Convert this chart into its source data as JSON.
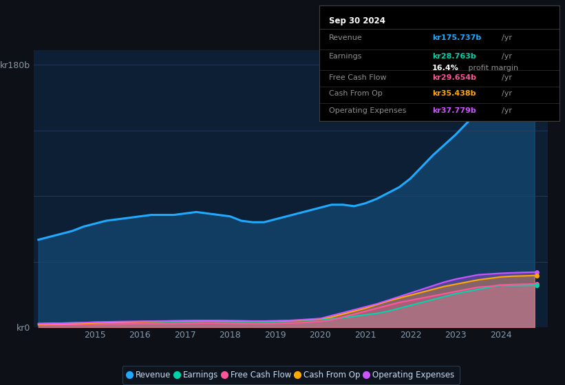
{
  "bg_color": "#0d1117",
  "plot_bg_color": "#0d1f35",
  "grid_color": "#1e3050",
  "years": [
    2013.75,
    2014.0,
    2014.25,
    2014.5,
    2014.75,
    2015.0,
    2015.25,
    2015.5,
    2015.75,
    2016.0,
    2016.25,
    2016.5,
    2016.75,
    2017.0,
    2017.25,
    2017.5,
    2017.75,
    2018.0,
    2018.25,
    2018.5,
    2018.75,
    2019.0,
    2019.25,
    2019.5,
    2019.75,
    2020.0,
    2020.25,
    2020.5,
    2020.75,
    2021.0,
    2021.25,
    2021.5,
    2021.75,
    2022.0,
    2022.25,
    2022.5,
    2022.75,
    2023.0,
    2023.25,
    2023.5,
    2023.75,
    2024.0,
    2024.25,
    2024.5,
    2024.75
  ],
  "revenue": [
    60,
    62,
    64,
    66,
    69,
    71,
    73,
    74,
    75,
    76,
    77,
    77,
    77,
    78,
    79,
    78,
    77,
    76,
    73,
    72,
    72,
    74,
    76,
    78,
    80,
    82,
    84,
    84,
    83,
    85,
    88,
    92,
    96,
    102,
    110,
    118,
    125,
    132,
    140,
    148,
    158,
    165,
    170,
    174,
    175.737
  ],
  "earnings": [
    2.5,
    2.7,
    2.8,
    3.0,
    3.2,
    3.4,
    3.5,
    3.6,
    3.7,
    3.8,
    3.9,
    4.0,
    4.0,
    4.1,
    4.2,
    4.3,
    4.2,
    4.1,
    4.0,
    3.9,
    3.8,
    4.0,
    4.2,
    4.5,
    5.0,
    5.5,
    5.8,
    6.5,
    7.5,
    8.5,
    9.5,
    11.0,
    13.0,
    15.0,
    17.0,
    19.0,
    21.0,
    23.0,
    24.5,
    26.0,
    27.5,
    28.763,
    28.5,
    28.6,
    28.763
  ],
  "free_cash_flow": [
    1.5,
    1.6,
    1.7,
    1.8,
    1.9,
    2.0,
    2.1,
    2.2,
    2.3,
    2.4,
    2.5,
    2.6,
    2.6,
    2.7,
    2.8,
    2.9,
    2.8,
    2.7,
    2.6,
    2.5,
    2.5,
    2.6,
    2.8,
    3.0,
    3.5,
    4.0,
    5.0,
    7.0,
    9.0,
    11.0,
    13.0,
    15.0,
    17.0,
    18.5,
    20.0,
    21.5,
    23.0,
    24.5,
    26.0,
    27.5,
    28.0,
    29.0,
    29.3,
    29.5,
    29.654
  ],
  "cash_from_op": [
    2.0,
    2.2,
    2.3,
    2.5,
    2.7,
    3.0,
    3.2,
    3.4,
    3.6,
    3.8,
    4.0,
    4.2,
    4.3,
    4.4,
    4.5,
    4.6,
    4.5,
    4.4,
    4.3,
    4.2,
    4.2,
    4.3,
    4.5,
    4.8,
    5.2,
    5.8,
    7.0,
    9.0,
    11.0,
    13.0,
    15.5,
    18.0,
    20.0,
    22.0,
    24.0,
    26.0,
    28.0,
    29.5,
    31.0,
    32.5,
    33.5,
    34.5,
    35.0,
    35.2,
    35.438
  ],
  "operating_expenses": [
    2.5,
    2.7,
    2.8,
    3.0,
    3.2,
    3.5,
    3.7,
    3.9,
    4.0,
    4.1,
    4.2,
    4.3,
    4.4,
    4.5,
    4.6,
    4.7,
    4.6,
    4.5,
    4.4,
    4.3,
    4.3,
    4.4,
    4.6,
    5.0,
    5.5,
    6.0,
    8.0,
    10.0,
    12.0,
    14.0,
    16.0,
    18.5,
    21.0,
    23.5,
    26.0,
    28.5,
    31.0,
    33.0,
    34.5,
    36.0,
    36.5,
    37.0,
    37.3,
    37.6,
    37.779
  ],
  "revenue_color": "#1eaaff",
  "earnings_color": "#00d4aa",
  "fcf_color": "#ff5599",
  "cashop_color": "#ffaa00",
  "opex_color": "#cc55ff",
  "ylim": [
    0,
    190
  ],
  "yticks": [
    0,
    45,
    90,
    135,
    180
  ],
  "ytick_labels": [
    "kr0",
    "",
    "",
    "",
    "kr180b"
  ],
  "xlabel_ticks": [
    2015,
    2016,
    2017,
    2018,
    2019,
    2020,
    2021,
    2022,
    2023,
    2024
  ],
  "info_box": {
    "date": "Sep 30 2024",
    "revenue_val": "kr175.737b",
    "earnings_val": "kr28.763b",
    "profit_margin": "16.4%",
    "fcf_val": "kr29.654b",
    "cashop_val": "kr35.438b",
    "opex_val": "kr37.779b"
  },
  "legend_entries": [
    "Revenue",
    "Earnings",
    "Free Cash Flow",
    "Cash From Op",
    "Operating Expenses"
  ]
}
